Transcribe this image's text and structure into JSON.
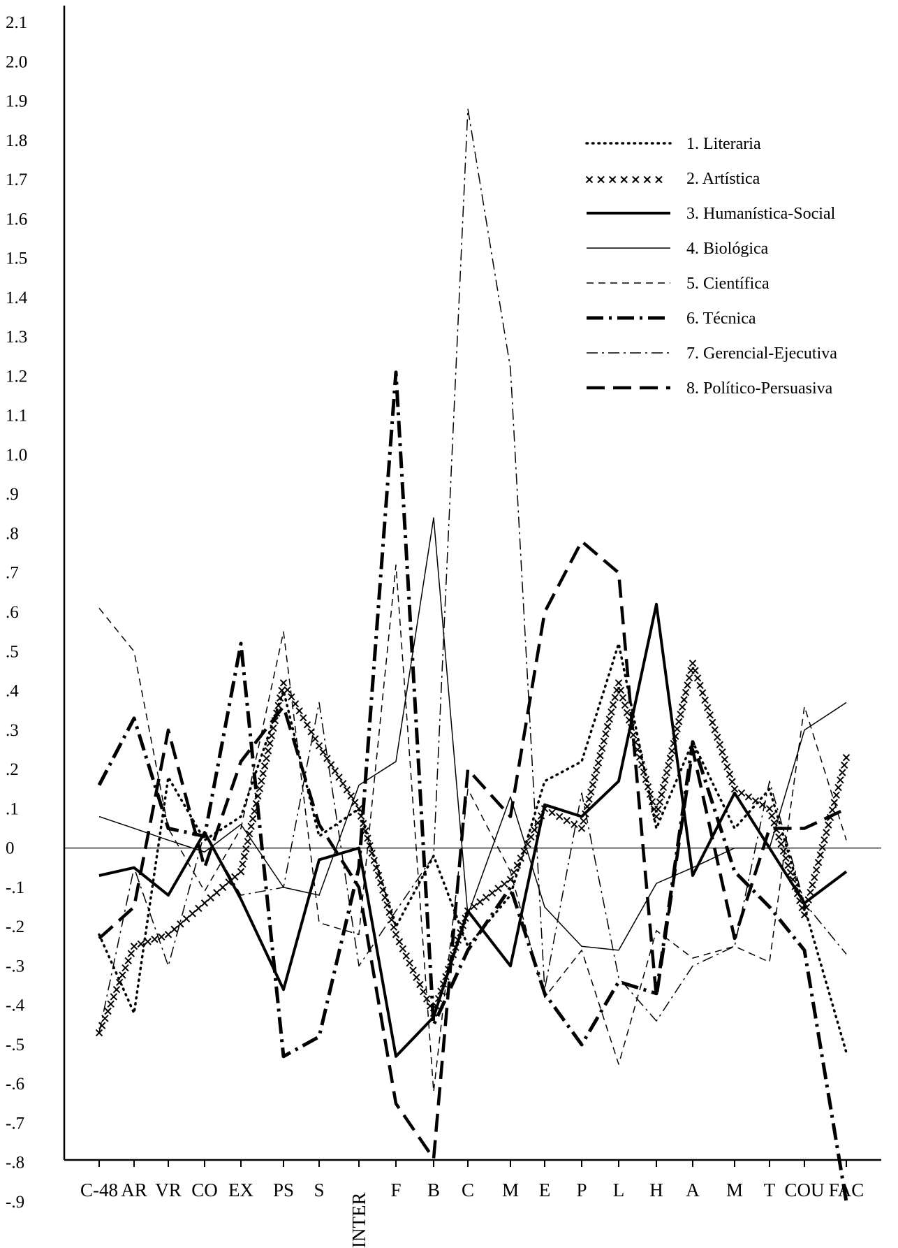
{
  "chart_data": {
    "type": "line",
    "title": "",
    "xlabel": "",
    "ylabel": "",
    "categories": [
      "C-48",
      "AR",
      "VR",
      "CO",
      "EX",
      "PS",
      "S",
      "INTER",
      "F",
      "B",
      "C",
      "M",
      "E",
      "P",
      "L",
      "H",
      "A",
      "M",
      "T",
      "COU",
      "FAC"
    ],
    "y_tick_labels": [
      "2.1",
      "2.0",
      "1.9",
      "1.8",
      "1.7",
      "1.6",
      "1.5",
      "1.4",
      "1.3",
      "1.2",
      "1.1",
      "1.0",
      ".9",
      ".8",
      ".7",
      ".6",
      ".5",
      ".4",
      ".3",
      ".2",
      ".1",
      "0",
      "-.1",
      "-.2",
      "-.3",
      "-.4",
      "-.5",
      "-.6",
      "-.7",
      "-.8",
      "-.9"
    ],
    "ylim": [
      -0.9,
      2.1
    ],
    "grid": false,
    "zero_line": true,
    "legend_position": "top-right",
    "series": [
      {
        "name": "1. Literaria",
        "style": "dotted",
        "values": [
          -0.22,
          -0.42,
          0.18,
          0.02,
          0.08,
          0.4,
          0.03,
          0.1,
          -0.2,
          -0.02,
          -0.25,
          -0.12,
          0.17,
          0.22,
          0.52,
          0.05,
          0.27,
          0.05,
          0.15,
          -0.15,
          -0.52
        ]
      },
      {
        "name": "2. Artística",
        "style": "cross",
        "values": [
          -0.47,
          -0.25,
          -0.22,
          -0.14,
          -0.06,
          0.42,
          0.26,
          0.1,
          -0.22,
          -0.42,
          -0.16,
          -0.08,
          0.1,
          0.05,
          0.42,
          0.08,
          0.47,
          0.15,
          0.1,
          -0.17,
          0.23
        ]
      },
      {
        "name": "3. Humanística-Social",
        "style": "thick-solid",
        "values": [
          -0.07,
          -0.05,
          -0.12,
          0.04,
          -0.13,
          -0.36,
          -0.03,
          0.0,
          -0.53,
          -0.43,
          -0.16,
          -0.3,
          0.11,
          0.08,
          0.17,
          0.62,
          -0.07,
          0.14,
          0.0,
          -0.14,
          -0.06
        ]
      },
      {
        "name": "4. Biológica",
        "style": "thin-solid",
        "values": [
          0.08,
          0.05,
          0.02,
          -0.01,
          0.06,
          -0.1,
          -0.12,
          0.16,
          0.22,
          0.84,
          -0.17,
          0.13,
          -0.15,
          -0.25,
          -0.26,
          -0.09,
          -0.05,
          0.0,
          0.0,
          0.3,
          0.37
        ]
      },
      {
        "name": "5. Científica",
        "style": "dashed",
        "values": [
          0.61,
          0.5,
          0.05,
          -0.11,
          0.05,
          0.55,
          -0.19,
          -0.22,
          0.72,
          -0.62,
          0.15,
          -0.06,
          -0.38,
          -0.26,
          -0.55,
          -0.21,
          -0.28,
          -0.25,
          -0.29,
          0.36,
          0.02
        ]
      },
      {
        "name": "6. Técnica",
        "style": "thick-dashdot",
        "values": [
          0.16,
          0.33,
          0.05,
          0.03,
          0.52,
          -0.53,
          -0.48,
          -0.05,
          1.21,
          -0.45,
          -0.26,
          -0.1,
          -0.37,
          -0.5,
          -0.34,
          -0.37,
          0.27,
          -0.06,
          -0.15,
          -0.26,
          -0.9
        ]
      },
      {
        "name": "7. Gerencial-Ejecutiva",
        "style": "dashdot",
        "values": [
          -0.47,
          -0.05,
          -0.3,
          0.04,
          -0.12,
          -0.1,
          0.37,
          -0.3,
          -0.16,
          -0.02,
          1.88,
          1.22,
          -0.36,
          0.14,
          -0.33,
          -0.44,
          -0.3,
          -0.25,
          0.17,
          -0.14,
          -0.27
        ]
      },
      {
        "name": "8. Político-Persuasiva",
        "style": "long-dash",
        "values": [
          -0.23,
          -0.15,
          0.3,
          -0.05,
          0.22,
          0.36,
          0.06,
          -0.1,
          -0.65,
          -0.79,
          0.2,
          0.08,
          0.6,
          0.78,
          0.7,
          -0.38,
          0.25,
          -0.23,
          0.05,
          0.05,
          0.1
        ]
      }
    ]
  }
}
